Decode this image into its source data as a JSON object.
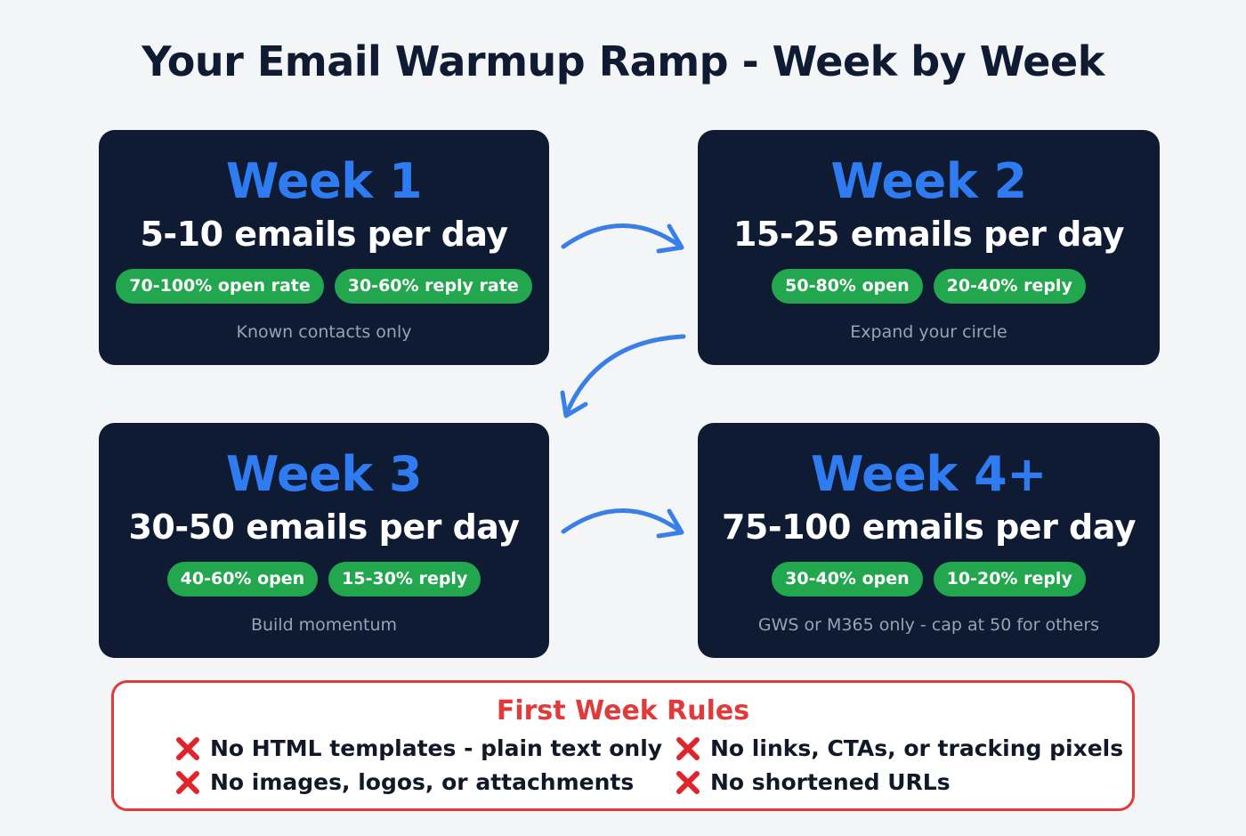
{
  "title": "Your Email Warmup Ramp - Week by Week",
  "colors": {
    "card_bg": "#0f1a33",
    "week_blue": "#2f7bf2",
    "badge_green": "#22a64e",
    "rules_red": "#e03a3a",
    "arrow_blue": "#3a7fe8"
  },
  "weeks": [
    {
      "label": "Week 1",
      "volume": "5-10 emails per day",
      "open_badge": "70-100% open rate",
      "reply_badge": "30-60% reply rate",
      "note": "Known contacts only"
    },
    {
      "label": "Week 2",
      "volume": "15-25 emails per day",
      "open_badge": "50-80% open",
      "reply_badge": "20-40% reply",
      "note": "Expand your circle"
    },
    {
      "label": "Week 3",
      "volume": "30-50 emails per day",
      "open_badge": "40-60% open",
      "reply_badge": "15-30% reply",
      "note": "Build momentum"
    },
    {
      "label": "Week 4+",
      "volume": "75-100 emails per day",
      "open_badge": "30-40% open",
      "reply_badge": "10-20% reply",
      "note": "GWS or M365 only - cap at 50 for others"
    }
  ],
  "rules": {
    "title": "First Week Rules",
    "icon": "red-x-icon",
    "items": [
      "No HTML templates - plain text only",
      "No links, CTAs, or tracking pixels",
      "No images, logos, or attachments",
      "No shortened URLs"
    ]
  }
}
